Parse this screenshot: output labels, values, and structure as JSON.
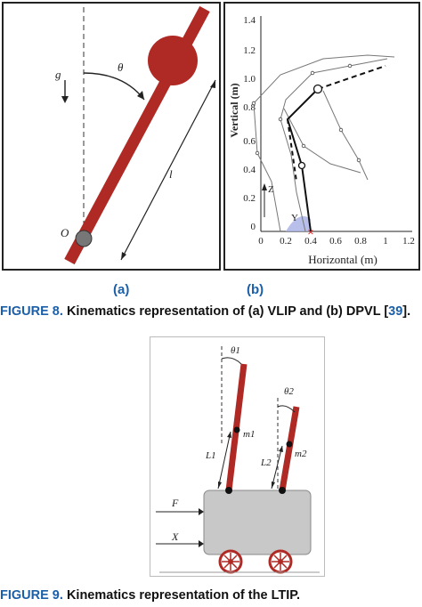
{
  "figure8": {
    "panel_a": {
      "label": "(a)",
      "symbols": {
        "gravity": "g",
        "angle": "θ",
        "length": "l",
        "pivot": "O"
      }
    },
    "panel_b": {
      "label": "(b)",
      "ylabel": "Vertical (m)",
      "xlabel": "Horizontal (m)",
      "xticks": [
        "0",
        "0.2",
        "0.4",
        "0.6",
        "0.8",
        "1",
        "1.2"
      ],
      "yticks": [
        "0",
        "0.2",
        "0.4",
        "0.6",
        "0.8",
        "1.0",
        "1.2",
        "1.4"
      ],
      "axes_labels": {
        "z": "Z",
        "y": "Y"
      }
    },
    "caption": {
      "fig": "FIGURE 8.",
      "text_before": "Kinematics representation of (a) VLIP and (b) DPVL [",
      "ref": "39",
      "text_after": "]."
    }
  },
  "figure9": {
    "symbols": {
      "theta1": "θ1",
      "theta2": "θ2",
      "m1": "m1",
      "m2": "m2",
      "L1": "L1",
      "L2": "L2",
      "F": "F",
      "X": "X"
    },
    "caption": {
      "fig": "FIGURE 9.",
      "text": "Kinematics representation of the LTIP."
    }
  },
  "colors": {
    "pendulum": "#b02a25",
    "caption_blue": "#1b5fa8",
    "cart": "#c8c8c8",
    "support_shade": "#aab4e6"
  }
}
